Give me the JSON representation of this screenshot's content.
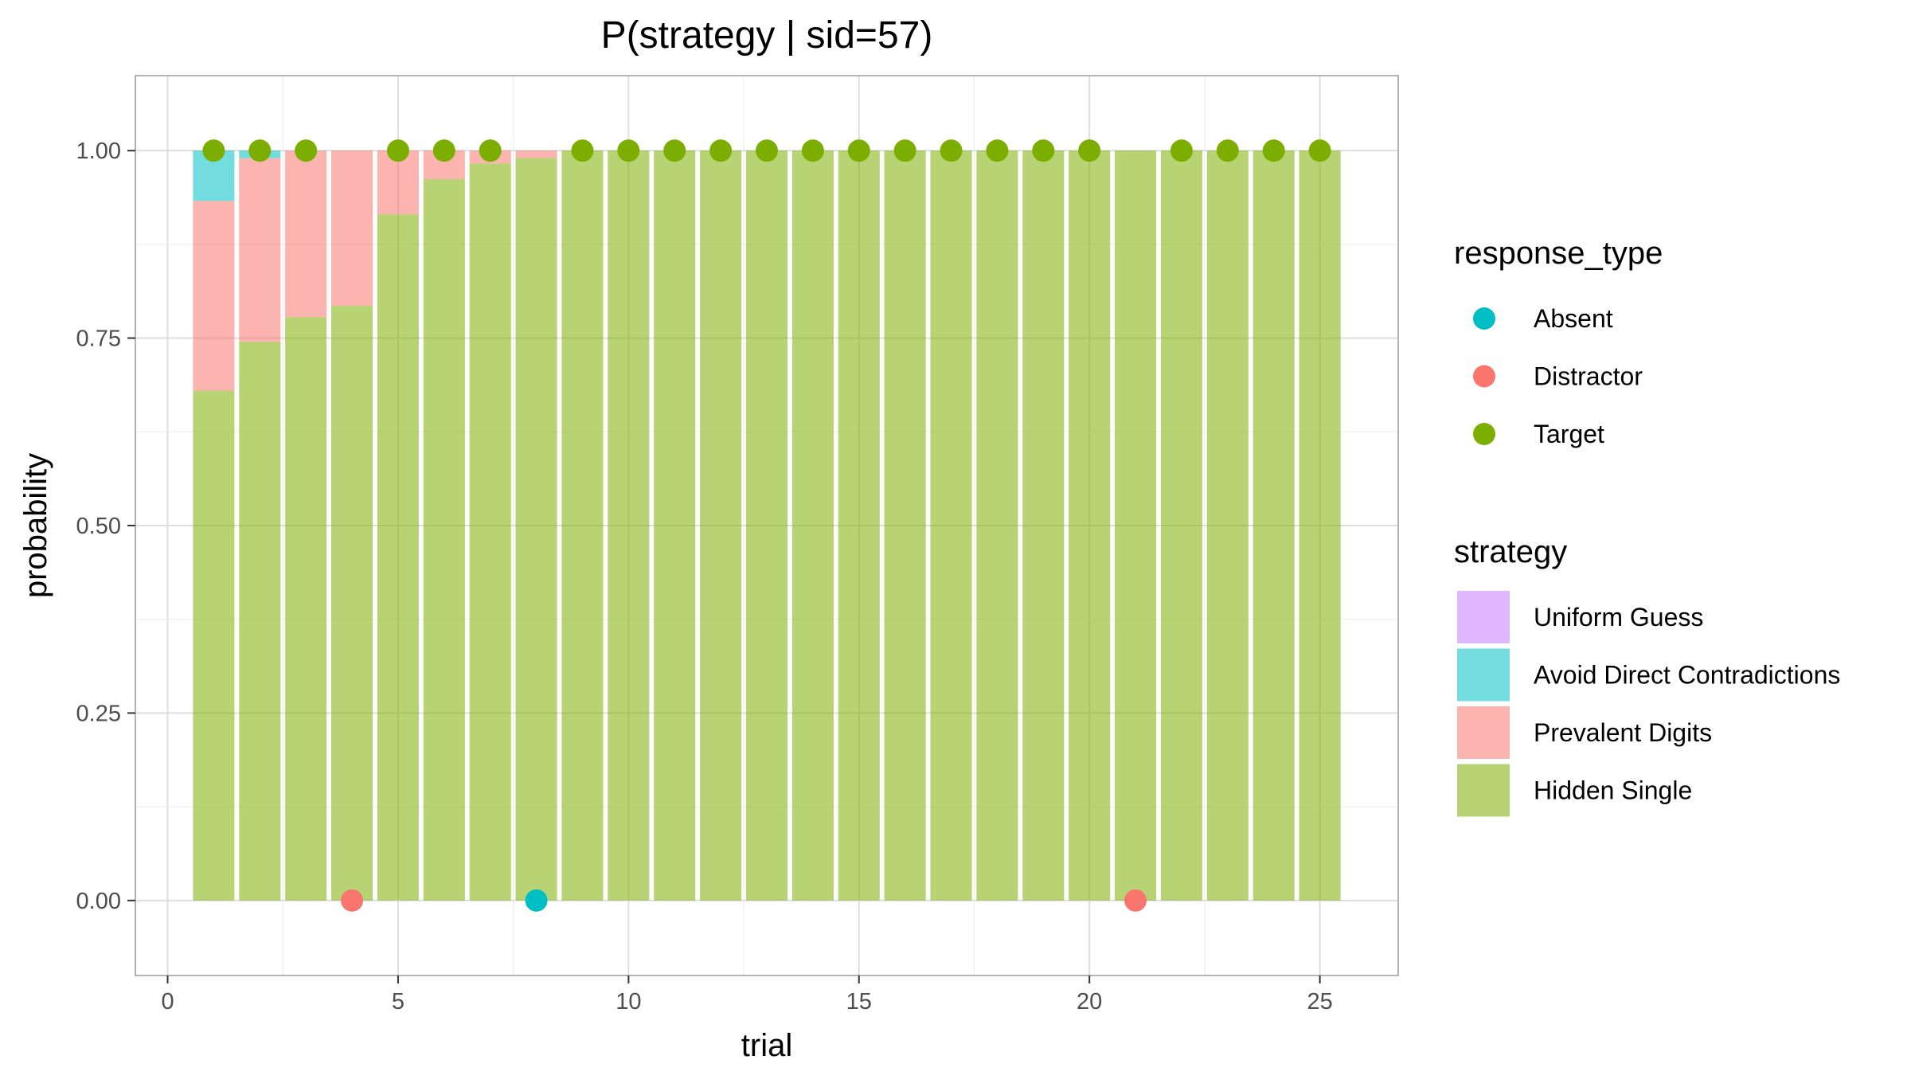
{
  "chart_data": {
    "type": "bar",
    "title": "P(strategy | sid=57)",
    "xlabel": "trial",
    "ylabel": "probability",
    "xlim": [
      -0.7,
      26.7
    ],
    "ylim": [
      -0.1,
      1.1
    ],
    "x_ticks": [
      0,
      5,
      10,
      15,
      20,
      25
    ],
    "y_ticks": [
      0,
      0.25,
      0.5,
      0.75,
      1
    ],
    "y_tick_labels": [
      "0.00",
      "0.25",
      "0.50",
      "0.75",
      "1.00"
    ],
    "grid": true,
    "x": [
      1,
      2,
      3,
      4,
      5,
      6,
      7,
      8,
      9,
      10,
      11,
      12,
      13,
      14,
      15,
      16,
      17,
      18,
      19,
      20,
      21,
      22,
      23,
      24,
      25
    ],
    "stacked": true,
    "series": [
      {
        "name": "Hidden Single",
        "color": "#7CAE00",
        "values": [
          0.68,
          0.745,
          0.778,
          0.793,
          0.915,
          0.962,
          0.983,
          0.99,
          1,
          1,
          1,
          1,
          1,
          1,
          1,
          1,
          1,
          1,
          1,
          1,
          1,
          1,
          1,
          1,
          1
        ]
      },
      {
        "name": "Prevalent Digits",
        "color": "#F8766D",
        "values": [
          0.253,
          0.245,
          0.222,
          0.207,
          0.085,
          0.038,
          0.017,
          0.01,
          0,
          0,
          0,
          0,
          0,
          0,
          0,
          0,
          0,
          0,
          0,
          0,
          0,
          0,
          0,
          0,
          0
        ]
      },
      {
        "name": "Avoid Direct Contradictions",
        "color": "#00BFC4",
        "values": [
          0.067,
          0.01,
          0,
          0,
          0,
          0,
          0,
          0,
          0,
          0,
          0,
          0,
          0,
          0,
          0,
          0,
          0,
          0,
          0,
          0,
          0,
          0,
          0,
          0,
          0
        ]
      },
      {
        "name": "Uniform Guess",
        "color": "#C77CFF",
        "values": [
          0,
          0,
          0,
          0,
          0,
          0,
          0,
          0,
          0,
          0,
          0,
          0,
          0,
          0,
          0,
          0,
          0,
          0,
          0,
          0,
          0,
          0,
          0,
          0,
          0
        ]
      }
    ],
    "points": [
      {
        "x": 1,
        "y": 1,
        "type": "Target"
      },
      {
        "x": 2,
        "y": 1,
        "type": "Target"
      },
      {
        "x": 3,
        "y": 1,
        "type": "Target"
      },
      {
        "x": 4,
        "y": 0,
        "type": "Distractor"
      },
      {
        "x": 5,
        "y": 1,
        "type": "Target"
      },
      {
        "x": 6,
        "y": 1,
        "type": "Target"
      },
      {
        "x": 7,
        "y": 1,
        "type": "Target"
      },
      {
        "x": 8,
        "y": 0,
        "type": "Absent"
      },
      {
        "x": 9,
        "y": 1,
        "type": "Target"
      },
      {
        "x": 10,
        "y": 1,
        "type": "Target"
      },
      {
        "x": 11,
        "y": 1,
        "type": "Target"
      },
      {
        "x": 12,
        "y": 1,
        "type": "Target"
      },
      {
        "x": 13,
        "y": 1,
        "type": "Target"
      },
      {
        "x": 14,
        "y": 1,
        "type": "Target"
      },
      {
        "x": 15,
        "y": 1,
        "type": "Target"
      },
      {
        "x": 16,
        "y": 1,
        "type": "Target"
      },
      {
        "x": 17,
        "y": 1,
        "type": "Target"
      },
      {
        "x": 18,
        "y": 1,
        "type": "Target"
      },
      {
        "x": 19,
        "y": 1,
        "type": "Target"
      },
      {
        "x": 20,
        "y": 1,
        "type": "Target"
      },
      {
        "x": 21,
        "y": 0,
        "type": "Distractor"
      },
      {
        "x": 22,
        "y": 1,
        "type": "Target"
      },
      {
        "x": 23,
        "y": 1,
        "type": "Target"
      },
      {
        "x": 24,
        "y": 1,
        "type": "Target"
      },
      {
        "x": 25,
        "y": 1,
        "type": "Target"
      }
    ],
    "legends": [
      {
        "title": "response_type",
        "kind": "point",
        "entries": [
          {
            "label": "Absent",
            "color": "#00BFC4"
          },
          {
            "label": "Distractor",
            "color": "#F8766D"
          },
          {
            "label": "Target",
            "color": "#7CAE00"
          }
        ]
      },
      {
        "title": "strategy",
        "kind": "fill",
        "entries": [
          {
            "label": "Uniform Guess",
            "color": "#C77CFF"
          },
          {
            "label": "Avoid Direct Contradictions",
            "color": "#00BFC4"
          },
          {
            "label": "Prevalent Digits",
            "color": "#F8766D"
          },
          {
            "label": "Hidden Single",
            "color": "#7CAE00"
          }
        ]
      }
    ],
    "legend_position": "right"
  }
}
